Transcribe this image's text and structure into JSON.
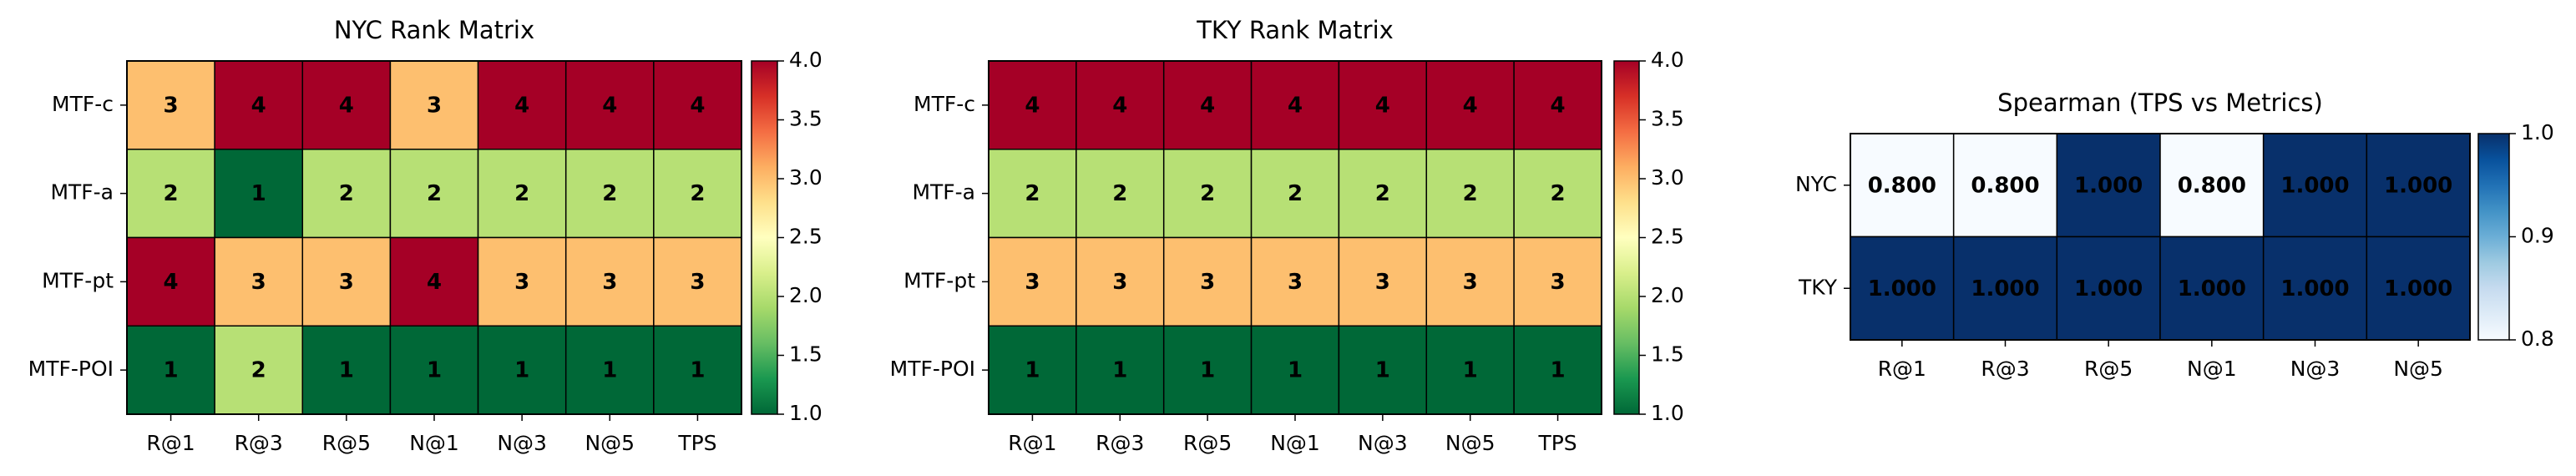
{
  "chart_data": [
    {
      "type": "heatmap",
      "title": "NYC Rank Matrix",
      "categories": [
        "R@1",
        "R@3",
        "R@5",
        "N@1",
        "N@3",
        "N@5",
        "TPS"
      ],
      "rows": [
        "MTF-c",
        "MTF-a",
        "MTF-pt",
        "MTF-POI"
      ],
      "values": [
        [
          3,
          4,
          4,
          3,
          4,
          4,
          4
        ],
        [
          2,
          1,
          2,
          2,
          2,
          2,
          2
        ],
        [
          4,
          3,
          3,
          4,
          3,
          3,
          3
        ],
        [
          1,
          2,
          1,
          1,
          1,
          1,
          1
        ]
      ],
      "colors": [
        "#006837",
        "#1a9850",
        "#66bd63",
        "#a6d96a",
        "#d9ef8b",
        "#ffffbf",
        "#fee08b",
        "#fdae61",
        "#f46d43",
        "#d73027",
        "#a50026"
      ],
      "clim": [
        1,
        4
      ],
      "cticks": [
        {
          "value": 1,
          "label": "1.0"
        },
        1.5,
        {
          "value": 2,
          "label": "2.0"
        },
        2.5,
        {
          "value": 3,
          "label": "3.0"
        },
        3.5,
        {
          "value": 4,
          "label": "4.0"
        }
      ]
    },
    {
      "type": "heatmap",
      "title": "TKY Rank Matrix",
      "categories": [
        "R@1",
        "R@3",
        "R@5",
        "N@1",
        "N@3",
        "N@5",
        "TPS"
      ],
      "rows": [
        "MTF-c",
        "MTF-a",
        "MTF-pt",
        "MTF-POI"
      ],
      "values": [
        [
          4,
          4,
          4,
          4,
          4,
          4,
          4
        ],
        [
          2,
          2,
          2,
          2,
          2,
          2,
          2
        ],
        [
          3,
          3,
          3,
          3,
          3,
          3,
          3
        ],
        [
          1,
          1,
          1,
          1,
          1,
          1,
          1
        ]
      ],
      "colors": [
        "#006837",
        "#1a9850",
        "#66bd63",
        "#a6d96a",
        "#d9ef8b",
        "#ffffbf",
        "#fee08b",
        "#fdae61",
        "#f46d43",
        "#d73027",
        "#a50026"
      ],
      "clim": [
        1,
        4
      ],
      "cticks": [
        {
          "value": 1,
          "label": "1.0"
        },
        1.5,
        {
          "value": 2,
          "label": "2.0"
        },
        2.5,
        {
          "value": 3,
          "label": "3.0"
        },
        3.5,
        {
          "value": 4,
          "label": "4.0"
        }
      ]
    },
    {
      "type": "heatmap",
      "title": "Spearman (TPS vs Metrics)",
      "categories": [
        "R@1",
        "R@3",
        "R@5",
        "N@1",
        "N@3",
        "N@5"
      ],
      "rows": [
        "NYC",
        "TKY"
      ],
      "values": [
        [
          0.8,
          0.8,
          1,
          0.8,
          1,
          1
        ],
        [
          1,
          1,
          1,
          1,
          1,
          1
        ]
      ],
      "value_labels": [
        [
          "0.800",
          "0.800",
          "1.000",
          "0.800",
          "1.000",
          "1.000"
        ],
        [
          "1.000",
          "1.000",
          "1.000",
          "1.000",
          "1.000",
          "1.000"
        ]
      ],
      "colors": [
        "#f7fbff",
        "#deebf7",
        "#c6dbef",
        "#9ecae1",
        "#6baed6",
        "#4292c6",
        "#2171b5",
        "#08519c",
        "#08306b"
      ],
      "clim": [
        0.8,
        1
      ],
      "cticks": [
        {
          "value": 0.8,
          "label": "0.8"
        },
        {
          "value": 0.9,
          "label": "0.9"
        },
        {
          "value": 1,
          "label": "1.0"
        }
      ]
    }
  ]
}
